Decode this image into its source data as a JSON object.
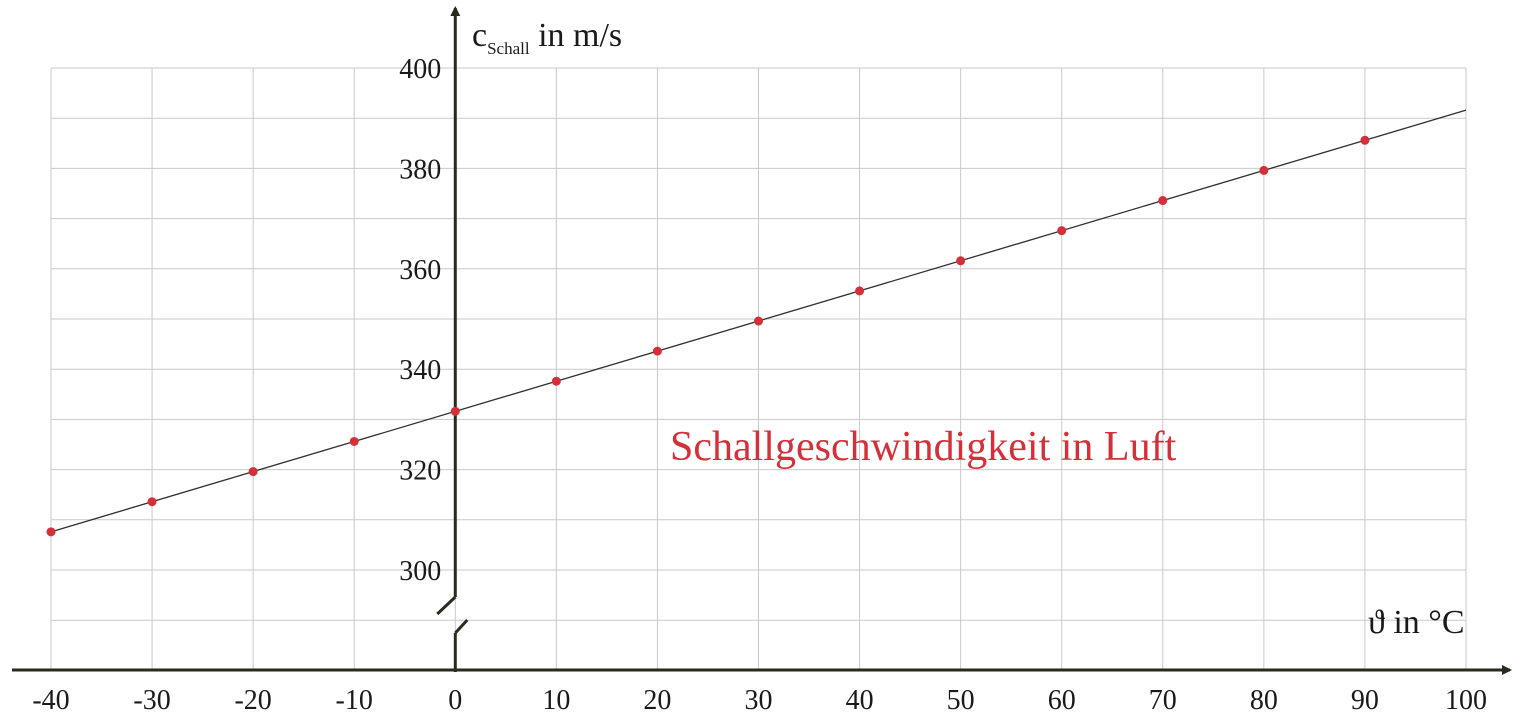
{
  "chart_data": {
    "type": "scatter",
    "title": "Schallgeschwindigkeit in Luft",
    "xlabel": "ϑ in °C",
    "ylabel": {
      "main": "c",
      "subscript": "Schall",
      "rest": " in m/s"
    },
    "xlim": [
      -40,
      100
    ],
    "ylim": [
      300,
      400
    ],
    "x_axis_at_y": 290,
    "x_ticks": [
      "-40",
      "-30",
      "-20",
      "-10",
      "0",
      "10",
      "20",
      "30",
      "40",
      "50",
      "60",
      "70",
      "80",
      "90",
      "100"
    ],
    "y_ticks": [
      "300",
      "320",
      "340",
      "360",
      "380",
      "400"
    ],
    "grid": true,
    "y_axis_break": true,
    "colors": {
      "points": "#d4303a",
      "title": "#d4303a",
      "line": "#2f2f2f",
      "axes": "#2a2a1e",
      "grid": "#c9c9c9"
    },
    "fit_line": {
      "x": [
        -40,
        100
      ],
      "y": [
        307.6,
        391.6
      ]
    },
    "series": [
      {
        "x": [
          -40,
          -30,
          -20,
          -10,
          0,
          10,
          20,
          30,
          40,
          50,
          60,
          70,
          80,
          90
        ],
        "y": [
          307.6,
          313.6,
          319.6,
          325.6,
          331.6,
          337.6,
          343.6,
          349.6,
          355.6,
          361.6,
          367.6,
          373.6,
          379.6,
          385.6
        ]
      }
    ]
  }
}
